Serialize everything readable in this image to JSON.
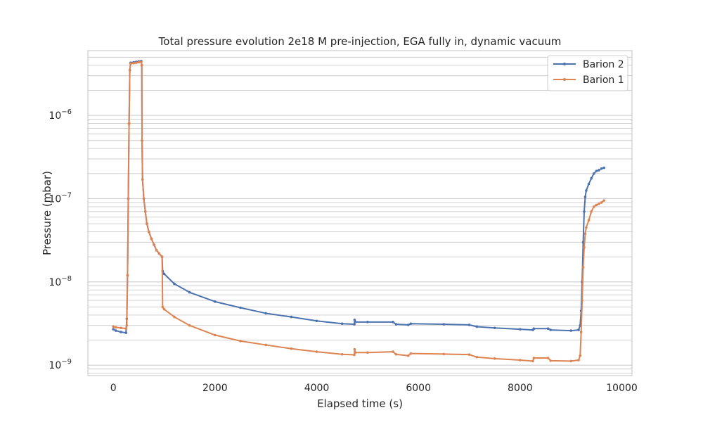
{
  "chart_data": {
    "type": "line",
    "title": "Total pressure evolution 2e18 M pre-injection, EGA fully in, dynamic vacuum",
    "xlabel": "Elapsed time (s)",
    "ylabel": "Pressure (mbar)",
    "xlim": [
      -500,
      10200
    ],
    "ylim": [
      7.5e-10,
      6e-06
    ],
    "yscale": "log",
    "grid": true,
    "legend": "top-right",
    "xticks": [
      {
        "value": 0,
        "label": "0"
      },
      {
        "value": 2000,
        "label": "2000"
      },
      {
        "value": 4000,
        "label": "4000"
      },
      {
        "value": 6000,
        "label": "6000"
      },
      {
        "value": 8000,
        "label": "8000"
      },
      {
        "value": 10000,
        "label": "10000"
      }
    ],
    "yticks": [
      {
        "value": 1e-09,
        "base": "10",
        "exp": "−9"
      },
      {
        "value": 1e-08,
        "base": "10",
        "exp": "−8"
      },
      {
        "value": 1e-07,
        "base": "10",
        "exp": "−7"
      },
      {
        "value": 1e-06,
        "base": "10",
        "exp": "−6"
      }
    ],
    "series": [
      {
        "name": "Barion 2",
        "color": "#4c72b0",
        "points": [
          [
            0,
            2.7e-09
          ],
          [
            50,
            2.6e-09
          ],
          [
            150,
            2.5e-09
          ],
          [
            250,
            2.45e-09
          ],
          [
            265,
            3.6e-09
          ],
          [
            280,
            1.2e-08
          ],
          [
            295,
            1e-07
          ],
          [
            310,
            8e-07
          ],
          [
            325,
            3.5e-06
          ],
          [
            340,
            4.3e-06
          ],
          [
            400,
            4.35e-06
          ],
          [
            450,
            4.4e-06
          ],
          [
            500,
            4.45e-06
          ],
          [
            550,
            4.5e-06
          ],
          [
            560,
            4e-06
          ],
          [
            565,
            5e-07
          ],
          [
            575,
            1.7e-07
          ],
          [
            600,
            1e-07
          ],
          [
            630,
            7e-08
          ],
          [
            660,
            5e-08
          ],
          [
            700,
            4e-08
          ],
          [
            750,
            3.3e-08
          ],
          [
            800,
            2.8e-08
          ],
          [
            850,
            2.4e-08
          ],
          [
            900,
            2.2e-08
          ],
          [
            960,
            2e-08
          ],
          [
            970,
            1.35e-08
          ],
          [
            1000,
            1.25e-08
          ],
          [
            1200,
            9.5e-09
          ],
          [
            1500,
            7.5e-09
          ],
          [
            2000,
            5.8e-09
          ],
          [
            2500,
            4.9e-09
          ],
          [
            3000,
            4.2e-09
          ],
          [
            3500,
            3.8e-09
          ],
          [
            4000,
            3.4e-09
          ],
          [
            4500,
            3.15e-09
          ],
          [
            4740,
            3.1e-09
          ],
          [
            4745,
            3.5e-09
          ],
          [
            4760,
            3.3e-09
          ],
          [
            5000,
            3.3e-09
          ],
          [
            5500,
            3.3e-09
          ],
          [
            5560,
            3.1e-09
          ],
          [
            5800,
            3.05e-09
          ],
          [
            5850,
            3.15e-09
          ],
          [
            6500,
            3.1e-09
          ],
          [
            7000,
            3.05e-09
          ],
          [
            7150,
            2.9e-09
          ],
          [
            7500,
            2.8e-09
          ],
          [
            8000,
            2.7e-09
          ],
          [
            8250,
            2.65e-09
          ],
          [
            8270,
            2.75e-09
          ],
          [
            8550,
            2.75e-09
          ],
          [
            8600,
            2.65e-09
          ],
          [
            9000,
            2.6e-09
          ],
          [
            9150,
            2.65e-09
          ],
          [
            9180,
            3e-09
          ],
          [
            9200,
            4.5e-09
          ],
          [
            9220,
            1e-08
          ],
          [
            9240,
            3e-08
          ],
          [
            9260,
            7e-08
          ],
          [
            9280,
            1.05e-07
          ],
          [
            9300,
            1.25e-07
          ],
          [
            9350,
            1.5e-07
          ],
          [
            9400,
            1.75e-07
          ],
          [
            9450,
            2e-07
          ],
          [
            9500,
            2.15e-07
          ],
          [
            9550,
            2.2e-07
          ],
          [
            9600,
            2.3e-07
          ],
          [
            9650,
            2.35e-07
          ]
        ]
      },
      {
        "name": "Barion 1",
        "color": "#dd8452",
        "points": [
          [
            0,
            2.9e-09
          ],
          [
            50,
            2.85e-09
          ],
          [
            150,
            2.8e-09
          ],
          [
            250,
            2.75e-09
          ],
          [
            265,
            3e-09
          ],
          [
            280,
            1.2e-08
          ],
          [
            295,
            1e-07
          ],
          [
            310,
            8e-07
          ],
          [
            325,
            3.5e-06
          ],
          [
            340,
            4.2e-06
          ],
          [
            400,
            4.25e-06
          ],
          [
            450,
            4.3e-06
          ],
          [
            500,
            4.35e-06
          ],
          [
            550,
            4.4e-06
          ],
          [
            560,
            4e-06
          ],
          [
            565,
            5e-07
          ],
          [
            575,
            1.7e-07
          ],
          [
            600,
            1e-07
          ],
          [
            630,
            7e-08
          ],
          [
            660,
            5e-08
          ],
          [
            700,
            4e-08
          ],
          [
            750,
            3.3e-08
          ],
          [
            800,
            2.8e-08
          ],
          [
            850,
            2.4e-08
          ],
          [
            900,
            2.2e-08
          ],
          [
            960,
            2e-08
          ],
          [
            970,
            5e-09
          ],
          [
            1000,
            4.7e-09
          ],
          [
            1200,
            3.8e-09
          ],
          [
            1500,
            3e-09
          ],
          [
            2000,
            2.3e-09
          ],
          [
            2500,
            1.95e-09
          ],
          [
            3000,
            1.75e-09
          ],
          [
            3500,
            1.58e-09
          ],
          [
            4000,
            1.45e-09
          ],
          [
            4500,
            1.35e-09
          ],
          [
            4740,
            1.33e-09
          ],
          [
            4745,
            1.55e-09
          ],
          [
            4760,
            1.42e-09
          ],
          [
            5000,
            1.42e-09
          ],
          [
            5500,
            1.45e-09
          ],
          [
            5560,
            1.35e-09
          ],
          [
            5800,
            1.3e-09
          ],
          [
            5850,
            1.38e-09
          ],
          [
            6500,
            1.36e-09
          ],
          [
            7000,
            1.34e-09
          ],
          [
            7150,
            1.25e-09
          ],
          [
            7500,
            1.2e-09
          ],
          [
            8000,
            1.15e-09
          ],
          [
            8250,
            1.12e-09
          ],
          [
            8270,
            1.22e-09
          ],
          [
            8550,
            1.22e-09
          ],
          [
            8600,
            1.13e-09
          ],
          [
            9000,
            1.12e-09
          ],
          [
            9150,
            1.15e-09
          ],
          [
            9180,
            1.3e-09
          ],
          [
            9200,
            2.5e-09
          ],
          [
            9220,
            6e-09
          ],
          [
            9240,
            1.5e-08
          ],
          [
            9260,
            2.6e-08
          ],
          [
            9280,
            3.8e-08
          ],
          [
            9300,
            4.5e-08
          ],
          [
            9350,
            5.5e-08
          ],
          [
            9400,
            7e-08
          ],
          [
            9450,
            8e-08
          ],
          [
            9500,
            8.4e-08
          ],
          [
            9550,
            8.7e-08
          ],
          [
            9600,
            9e-08
          ],
          [
            9650,
            9.5e-08
          ]
        ]
      }
    ]
  }
}
